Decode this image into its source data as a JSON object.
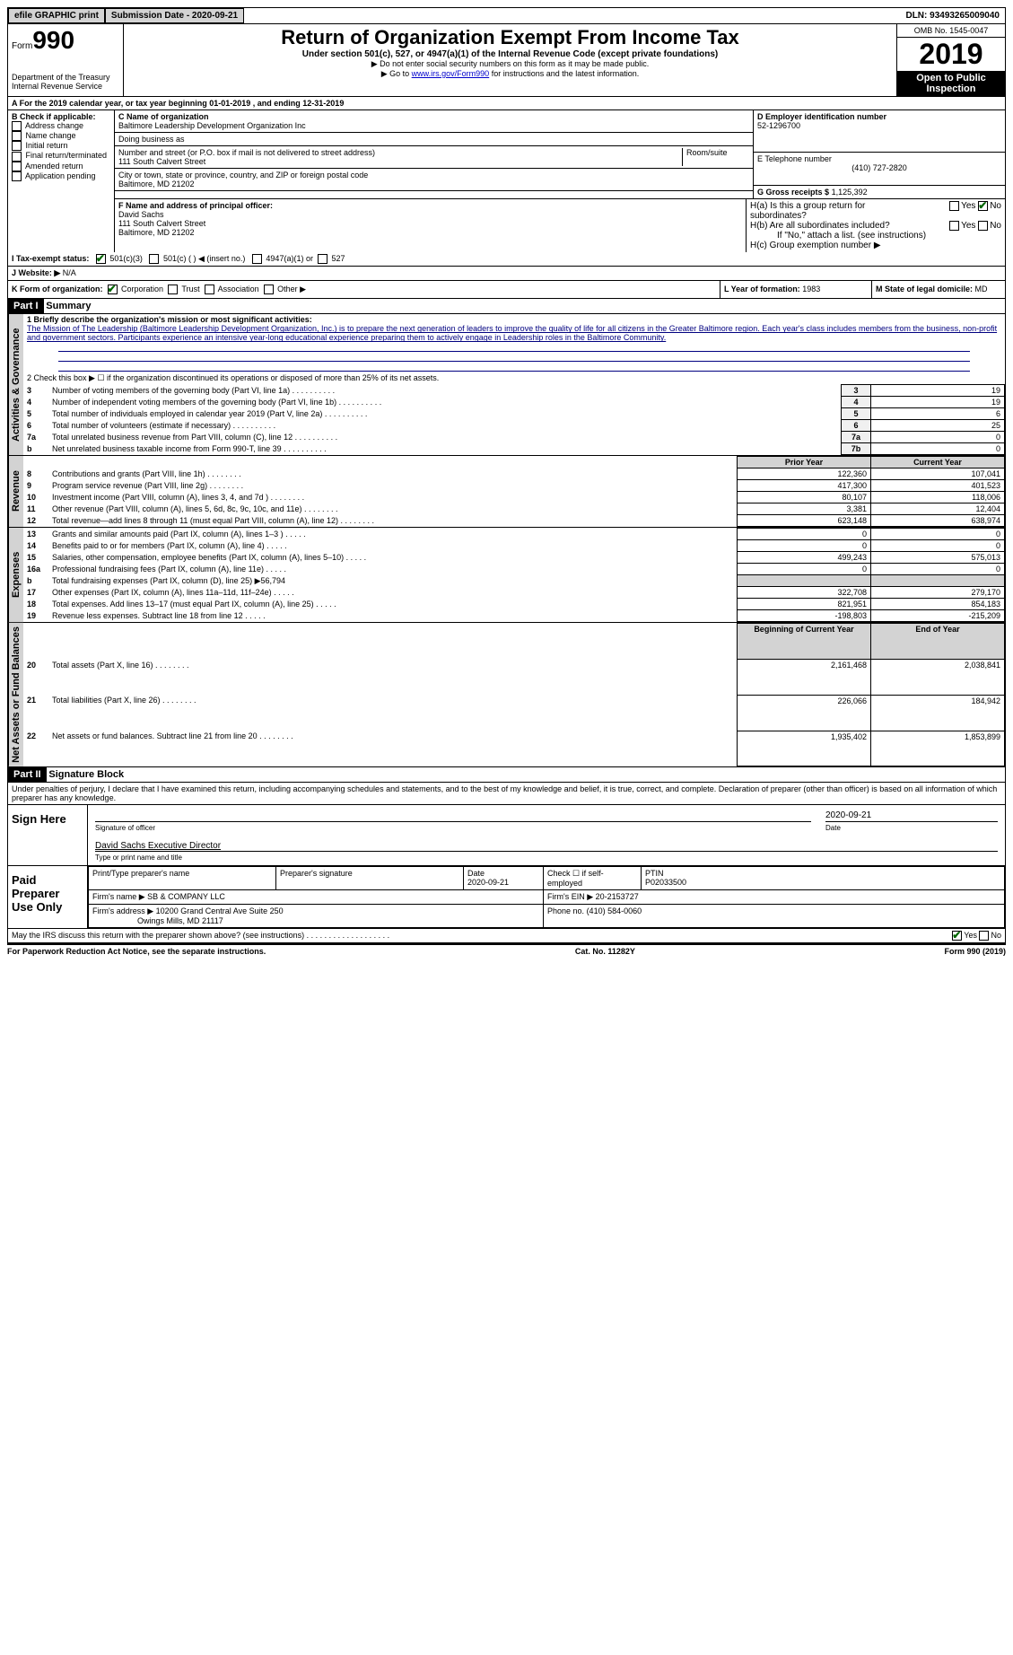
{
  "topbar": {
    "efile": "efile GRAPHIC print",
    "submission": "Submission Date - 2020-09-21",
    "dln": "DLN: 93493265009040"
  },
  "header": {
    "form_label": "Form",
    "form_number": "990",
    "dept": "Department of the Treasury\nInternal Revenue Service",
    "title": "Return of Organization Exempt From Income Tax",
    "subtitle": "Under section 501(c), 527, or 4947(a)(1) of the Internal Revenue Code (except private foundations)",
    "note1": "▶ Do not enter social security numbers on this form as it may be made public.",
    "note2_pre": "▶ Go to ",
    "note2_link": "www.irs.gov/Form990",
    "note2_post": " for instructions and the latest information.",
    "omb": "OMB No. 1545-0047",
    "year": "2019",
    "inspection": "Open to Public Inspection"
  },
  "section_a": "A   For the 2019 calendar year, or tax year beginning 01-01-2019    , and ending 12-31-2019",
  "box_b": {
    "title": "B Check if applicable:",
    "items": [
      "Address change",
      "Name change",
      "Initial return",
      "Final return/terminated",
      "Amended return",
      "Application pending"
    ]
  },
  "box_c": {
    "label_name": "C Name of organization",
    "org_name": "Baltimore Leadership Development Organization Inc",
    "dba_label": "Doing business as",
    "addr_label": "Number and street (or P.O. box if mail is not delivered to street address)",
    "room_label": "Room/suite",
    "addr": "111 South Calvert Street",
    "city_label": "City or town, state or province, country, and ZIP or foreign postal code",
    "city": "Baltimore, MD  21202"
  },
  "box_d": {
    "label": "D Employer identification number",
    "value": "52-1296700"
  },
  "box_e": {
    "label": "E Telephone number",
    "value": "(410) 727-2820"
  },
  "box_g": {
    "label": "G Gross receipts $",
    "value": "1,125,392"
  },
  "box_f": {
    "label": "F Name and address of principal officer:",
    "name": "David Sachs",
    "addr1": "111 South Calvert Street",
    "addr2": "Baltimore, MD  21202"
  },
  "box_h": {
    "ha_label": "H(a)  Is this a group return for subordinates?",
    "hb_label": "H(b)  Are all subordinates included?",
    "hb_note": "If \"No,\" attach a list. (see instructions)",
    "hc_label": "H(c)  Group exemption number ▶",
    "yes": "Yes",
    "no": "No"
  },
  "box_i": {
    "label": "I   Tax-exempt status:",
    "opt1": "501(c)(3)",
    "opt2": "501(c) (  ) ◀ (insert no.)",
    "opt3": "4947(a)(1) or",
    "opt4": "527"
  },
  "box_j": {
    "label": "J   Website: ▶",
    "value": "N/A"
  },
  "box_k": {
    "label": "K Form of organization:",
    "opts": [
      "Corporation",
      "Trust",
      "Association",
      "Other ▶"
    ]
  },
  "box_l": {
    "label": "L Year of formation:",
    "value": "1983"
  },
  "box_m": {
    "label": "M State of legal domicile:",
    "value": "MD"
  },
  "parts": {
    "part1_label": "Part I",
    "part1_title": "Summary",
    "part2_label": "Part II",
    "part2_title": "Signature Block"
  },
  "summary": {
    "l1_label": "1  Briefly describe the organization's mission or most significant activities:",
    "l1_text": "The Mission of The Leadership (Baltimore Leadership Development Organization, Inc.) is to prepare the next generation of leaders to improve the quality of life for all citizens in the Greater Baltimore region. Each year's class includes members from the business, non-profit and government sectors. Participants experience an intensive year-long educational experience preparing them to actively engage in Leadership roles in the Baltimore Community.",
    "l2": "2   Check this box ▶ ☐  if the organization discontinued its operations or disposed of more than 25% of its net assets.",
    "vtab1": "Activities & Governance",
    "vtab2": "Revenue",
    "vtab3": "Expenses",
    "vtab4": "Net Assets or Fund Balances",
    "headers": {
      "prior": "Prior Year",
      "current": "Current Year",
      "begin": "Beginning of Current Year",
      "end": "End of Year"
    },
    "rows_gov": [
      {
        "n": "3",
        "t": "Number of voting members of the governing body (Part VI, line 1a)",
        "k": "3",
        "v": "19"
      },
      {
        "n": "4",
        "t": "Number of independent voting members of the governing body (Part VI, line 1b)",
        "k": "4",
        "v": "19"
      },
      {
        "n": "5",
        "t": "Total number of individuals employed in calendar year 2019 (Part V, line 2a)",
        "k": "5",
        "v": "6"
      },
      {
        "n": "6",
        "t": "Total number of volunteers (estimate if necessary)",
        "k": "6",
        "v": "25"
      },
      {
        "n": "7a",
        "t": "Total unrelated business revenue from Part VIII, column (C), line 12",
        "k": "7a",
        "v": "0"
      },
      {
        "n": "b",
        "t": "Net unrelated business taxable income from Form 990-T, line 39",
        "k": "7b",
        "v": "0"
      }
    ],
    "rows_rev": [
      {
        "n": "8",
        "t": "Contributions and grants (Part VIII, line 1h)",
        "p": "122,360",
        "c": "107,041"
      },
      {
        "n": "9",
        "t": "Program service revenue (Part VIII, line 2g)",
        "p": "417,300",
        "c": "401,523"
      },
      {
        "n": "10",
        "t": "Investment income (Part VIII, column (A), lines 3, 4, and 7d )",
        "p": "80,107",
        "c": "118,006"
      },
      {
        "n": "11",
        "t": "Other revenue (Part VIII, column (A), lines 5, 6d, 8c, 9c, 10c, and 11e)",
        "p": "3,381",
        "c": "12,404"
      },
      {
        "n": "12",
        "t": "Total revenue—add lines 8 through 11 (must equal Part VIII, column (A), line 12)",
        "p": "623,148",
        "c": "638,974"
      }
    ],
    "rows_exp": [
      {
        "n": "13",
        "t": "Grants and similar amounts paid (Part IX, column (A), lines 1–3 )",
        "p": "0",
        "c": "0"
      },
      {
        "n": "14",
        "t": "Benefits paid to or for members (Part IX, column (A), line 4)",
        "p": "0",
        "c": "0"
      },
      {
        "n": "15",
        "t": "Salaries, other compensation, employee benefits (Part IX, column (A), lines 5–10)",
        "p": "499,243",
        "c": "575,013"
      },
      {
        "n": "16a",
        "t": "Professional fundraising fees (Part IX, column (A), line 11e)",
        "p": "0",
        "c": "0"
      },
      {
        "n": "b",
        "t": "Total fundraising expenses (Part IX, column (D), line 25) ▶56,794",
        "p": "",
        "c": ""
      },
      {
        "n": "17",
        "t": "Other expenses (Part IX, column (A), lines 11a–11d, 11f–24e)",
        "p": "322,708",
        "c": "279,170"
      },
      {
        "n": "18",
        "t": "Total expenses. Add lines 13–17 (must equal Part IX, column (A), line 25)",
        "p": "821,951",
        "c": "854,183"
      },
      {
        "n": "19",
        "t": "Revenue less expenses. Subtract line 18 from line 12",
        "p": "-198,803",
        "c": "-215,209"
      }
    ],
    "rows_net": [
      {
        "n": "20",
        "t": "Total assets (Part X, line 16)",
        "p": "2,161,468",
        "c": "2,038,841"
      },
      {
        "n": "21",
        "t": "Total liabilities (Part X, line 26)",
        "p": "226,066",
        "c": "184,942"
      },
      {
        "n": "22",
        "t": "Net assets or fund balances. Subtract line 21 from line 20",
        "p": "1,935,402",
        "c": "1,853,899"
      }
    ]
  },
  "signature": {
    "decl": "Under penalties of perjury, I declare that I have examined this return, including accompanying schedules and statements, and to the best of my knowledge and belief, it is true, correct, and complete. Declaration of preparer (other than officer) is based on all information of which preparer has any knowledge.",
    "sign_here": "Sign Here",
    "sig_officer": "Signature of officer",
    "date": "Date",
    "date_val": "2020-09-21",
    "name_title": "David Sachs Executive Director",
    "type_name": "Type or print name and title",
    "paid_prep": "Paid Preparer Use Only",
    "print_name_label": "Print/Type preparer's name",
    "prep_sig_label": "Preparer's signature",
    "date2": "2020-09-21",
    "check_if": "Check ☐ if self-employed",
    "ptin_label": "PTIN",
    "ptin": "P02033500",
    "firm_name_label": "Firm's name    ▶",
    "firm_name": "SB & COMPANY LLC",
    "firm_ein_label": "Firm's EIN ▶",
    "firm_ein": "20-2153727",
    "firm_addr_label": "Firm's address ▶",
    "firm_addr1": "10200 Grand Central Ave Suite 250",
    "firm_addr2": "Owings Mills, MD  21117",
    "phone_label": "Phone no.",
    "phone": "(410) 584-0060",
    "discuss": "May the IRS discuss this return with the preparer shown above? (see instructions)"
  },
  "footer": {
    "left": "For Paperwork Reduction Act Notice, see the separate instructions.",
    "mid": "Cat. No. 11282Y",
    "right": "Form 990 (2019)"
  }
}
